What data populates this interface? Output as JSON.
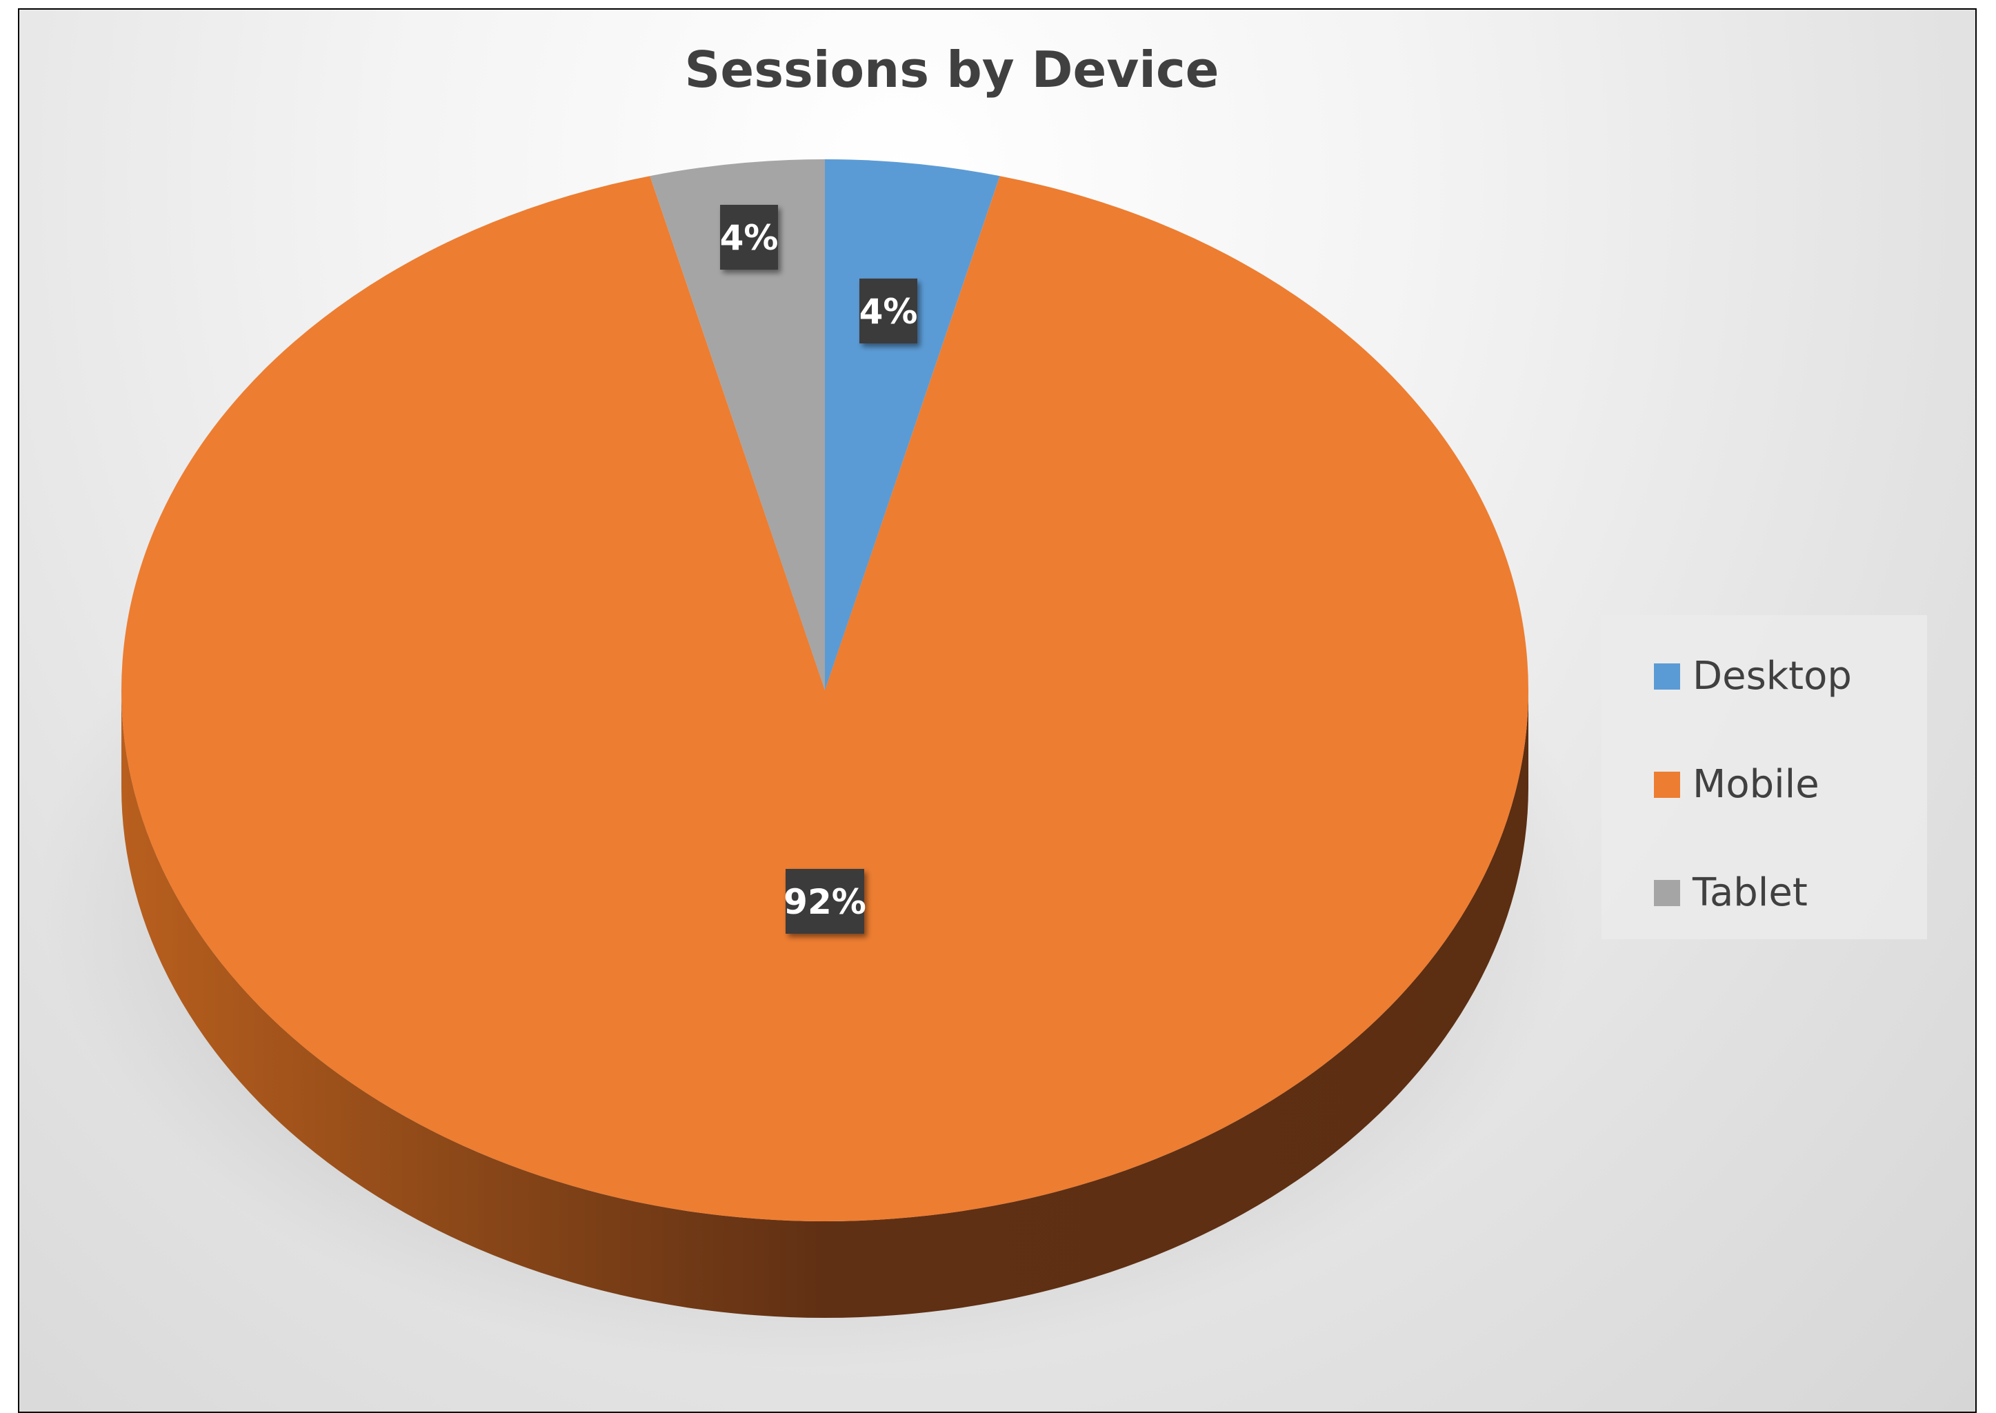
{
  "chart_data": {
    "type": "pie",
    "title": "Sessions by Device",
    "categories": [
      "Desktop",
      "Mobile",
      "Tablet"
    ],
    "values": [
      4,
      92,
      4
    ],
    "data_labels": [
      "4%",
      "92%",
      "4%"
    ],
    "colors": {
      "Desktop": "#5B9BD5",
      "Mobile": "#ED7D31",
      "Tablet": "#A5A5A5"
    },
    "legend_position": "right",
    "style": "3d"
  }
}
